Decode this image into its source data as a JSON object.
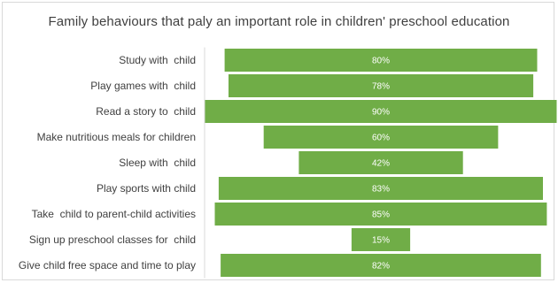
{
  "chart_data": {
    "type": "bar",
    "orientation": "horizontal-centered",
    "title": "Family behaviours that paly an important role in children' preschool education",
    "categories": [
      "Study with  child",
      "Play games with  child",
      "Read a story to  child",
      "Make nutritious meals for children",
      "Sleep with  child",
      "Play sports with child",
      "Take  child to parent-child activities",
      "Sign up preschool classes for  child",
      "Give child free space and time to play"
    ],
    "values": [
      80,
      78,
      90,
      60,
      42,
      83,
      85,
      15,
      82
    ],
    "value_labels": [
      "80%",
      "78%",
      "90%",
      "60%",
      "42%",
      "83%",
      "85%",
      "15%",
      "82%"
    ],
    "xlim": [
      0,
      90
    ],
    "bar_color": "#70ad47",
    "label_color": "#ffffff",
    "grid": false,
    "legend": "none"
  }
}
